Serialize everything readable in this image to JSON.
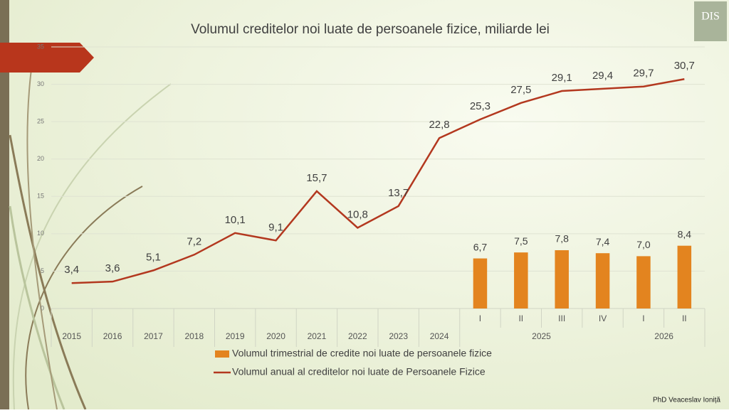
{
  "chart_data": {
    "type": "bar-line",
    "title": "Volumul creditelor noi luate de persoanele fizice, miliarde lei",
    "categories": [
      "2015",
      "2016",
      "2017",
      "2018",
      "2019",
      "2020",
      "2021",
      "2022",
      "2023",
      "2024",
      "I",
      "II",
      "III",
      "IV",
      "I",
      "II"
    ],
    "category_groups": [
      {
        "label": "2025",
        "count": 4
      },
      {
        "label": "2026",
        "count": 2
      }
    ],
    "series": [
      {
        "name": "Volumul trimestrial de credite noi luate de persoanele fizice",
        "type": "bar",
        "color": "#e3841f",
        "values": [
          null,
          null,
          null,
          null,
          null,
          null,
          null,
          null,
          null,
          null,
          6.7,
          7.5,
          7.8,
          7.4,
          7.0,
          8.4
        ],
        "value_labels": [
          null,
          null,
          null,
          null,
          null,
          null,
          null,
          null,
          null,
          null,
          "6,7",
          "7,5",
          "7,8",
          "7,4",
          "7,0",
          "8,4"
        ]
      },
      {
        "name": "Volumul anual al creditelor noi luate de Persoanele Fizice",
        "type": "line",
        "color": "#b3381f",
        "values": [
          3.4,
          3.6,
          5.1,
          7.2,
          10.1,
          9.1,
          15.7,
          10.8,
          13.7,
          22.8,
          25.3,
          27.5,
          29.1,
          29.4,
          29.7,
          30.7
        ],
        "value_labels": [
          "3,4",
          "3,6",
          "5,1",
          "7,2",
          "10,1",
          "9,1",
          "15,7",
          "10,8",
          "13,7",
          "22,8",
          "25,3",
          "27,5",
          "29,1",
          "29,4",
          "29,7",
          "30,7"
        ]
      }
    ],
    "ylim": [
      0,
      35
    ],
    "yticks": [
      0,
      5,
      10,
      15,
      20,
      25,
      30,
      35
    ],
    "grid": true,
    "author": "PhD Veaceslav Ioniță",
    "logo": "DIS"
  }
}
